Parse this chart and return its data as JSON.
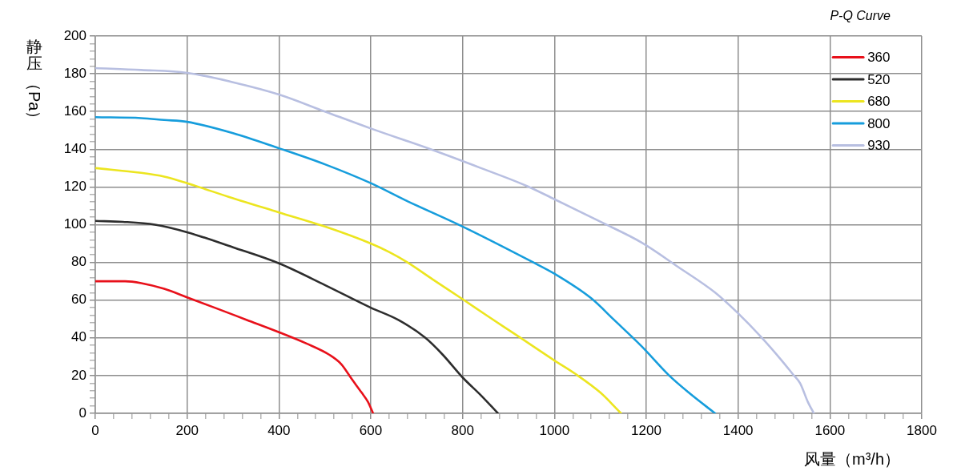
{
  "chart_data": {
    "type": "line",
    "title": "P-Q Curve",
    "xlabel": "风量（m³/h）",
    "ylabel": "静压（Pa）",
    "xlim": [
      0,
      1800
    ],
    "ylim": [
      0,
      200
    ],
    "xticks": [
      0,
      {
        "value": 40,
        "label": null
      },
      {
        "value": 80,
        "label": null
      },
      {
        "value": 120,
        "label": null
      },
      {
        "value": 160,
        "label": null
      },
      200,
      {
        "value": 240,
        "label": null
      },
      {
        "value": 280,
        "label": null
      },
      {
        "value": 320,
        "label": null
      },
      {
        "value": 360,
        "label": null
      },
      400,
      {
        "value": 440,
        "label": null
      },
      {
        "value": 480,
        "label": null
      },
      {
        "value": 520,
        "label": null
      },
      {
        "value": 560,
        "label": null
      },
      600,
      {
        "value": 640,
        "label": null
      },
      {
        "value": 680,
        "label": null
      },
      {
        "value": 720,
        "label": null
      },
      {
        "value": 760,
        "label": null
      },
      800,
      {
        "value": 840,
        "label": null
      },
      {
        "value": 880,
        "label": null
      },
      {
        "value": 920,
        "label": null
      },
      {
        "value": 960,
        "label": null
      },
      1000,
      {
        "value": 1040,
        "label": null
      },
      {
        "value": 1080,
        "label": null
      },
      {
        "value": 1120,
        "label": null
      },
      {
        "value": 1160,
        "label": null
      },
      1200,
      {
        "value": 1240,
        "label": null
      },
      {
        "value": 1280,
        "label": null
      },
      {
        "value": 1320,
        "label": null
      },
      {
        "value": 1360,
        "label": null
      },
      1400,
      {
        "value": 1440,
        "label": null
      },
      {
        "value": 1480,
        "label": null
      },
      {
        "value": 1520,
        "label": null
      },
      {
        "value": 1560,
        "label": null
      },
      1600,
      {
        "value": 1640,
        "label": null
      },
      {
        "value": 1680,
        "label": null
      },
      {
        "value": 1720,
        "label": null
      },
      {
        "value": 1760,
        "label": null
      },
      1800
    ],
    "yticks": [
      0,
      {
        "value": 4,
        "label": null
      },
      {
        "value": 8,
        "label": null
      },
      {
        "value": 12,
        "label": null
      },
      {
        "value": 16,
        "label": null
      },
      20,
      {
        "value": 24,
        "label": null
      },
      {
        "value": 28,
        "label": null
      },
      {
        "value": 32,
        "label": null
      },
      {
        "value": 36,
        "label": null
      },
      40,
      {
        "value": 44,
        "label": null
      },
      {
        "value": 48,
        "label": null
      },
      {
        "value": 52,
        "label": null
      },
      {
        "value": 56,
        "label": null
      },
      60,
      {
        "value": 64,
        "label": null
      },
      {
        "value": 68,
        "label": null
      },
      {
        "value": 72,
        "label": null
      },
      {
        "value": 76,
        "label": null
      },
      80,
      {
        "value": 84,
        "label": null
      },
      {
        "value": 88,
        "label": null
      },
      {
        "value": 92,
        "label": null
      },
      {
        "value": 96,
        "label": null
      },
      100,
      {
        "value": 104,
        "label": null
      },
      {
        "value": 108,
        "label": null
      },
      {
        "value": 112,
        "label": null
      },
      {
        "value": 116,
        "label": null
      },
      120,
      {
        "value": 124,
        "label": null
      },
      {
        "value": 128,
        "label": null
      },
      {
        "value": 132,
        "label": null
      },
      {
        "value": 136,
        "label": null
      },
      140,
      {
        "value": 144,
        "label": null
      },
      {
        "value": 148,
        "label": null
      },
      {
        "value": 152,
        "label": null
      },
      {
        "value": 156,
        "label": null
      },
      160,
      {
        "value": 164,
        "label": null
      },
      {
        "value": 168,
        "label": null
      },
      {
        "value": 172,
        "label": null
      },
      {
        "value": 176,
        "label": null
      },
      180,
      {
        "value": 184,
        "label": null
      },
      {
        "value": 188,
        "label": null
      },
      {
        "value": 192,
        "label": null
      },
      {
        "value": 196,
        "label": null
      },
      200
    ],
    "grid": true,
    "legend": "top right",
    "series": [
      {
        "name": "360",
        "color": "#e8101a",
        "x": [
          0,
          65,
          100,
          150,
          200,
          260,
          330,
          400,
          460,
          510,
          536,
          559,
          580,
          594,
          605
        ],
        "values": [
          70,
          70,
          69,
          66,
          61.5,
          56,
          49.5,
          43,
          37,
          31,
          26,
          18,
          11,
          6,
          0
        ]
      },
      {
        "name": "520",
        "color": "#2d2d2d",
        "x": [
          0,
          60,
          130,
          200,
          300,
          400,
          500,
          600,
          660,
          719,
          757,
          800,
          840,
          877
        ],
        "values": [
          102,
          101.5,
          100,
          96,
          88,
          79.5,
          68,
          56,
          49.5,
          40,
          31,
          19,
          9.5,
          0
        ]
      },
      {
        "name": "680",
        "color": "#ece51f",
        "x": [
          0,
          100,
          150,
          200,
          300,
          400,
          500,
          600,
          640,
          680,
          735,
          800,
          855,
          920,
          1000,
          1045,
          1100,
          1145
        ],
        "values": [
          130,
          127.5,
          125.5,
          122,
          114,
          106.5,
          99,
          90,
          85.5,
          80,
          71,
          60.5,
          51.5,
          41,
          28,
          21,
          11,
          0
        ]
      },
      {
        "name": "800",
        "color": "#169ddc",
        "x": [
          0,
          100,
          150,
          200,
          300,
          400,
          500,
          600,
          675,
          800,
          950,
          1000,
          1080,
          1130,
          1190,
          1250,
          1295,
          1350
        ],
        "values": [
          157,
          156.5,
          155.5,
          154.5,
          148.5,
          140.5,
          132,
          122,
          113,
          99,
          80.5,
          74,
          61,
          49.5,
          35.5,
          20,
          10.5,
          0
        ]
      },
      {
        "name": "930",
        "color": "#b8bfe1",
        "x": [
          0,
          100,
          200,
          300,
          400,
          500,
          600,
          730,
          840,
          940,
          1000,
          1105,
          1190,
          1270,
          1350,
          1400,
          1450,
          1495,
          1520,
          1535,
          1552,
          1565
        ],
        "values": [
          183,
          182,
          180.5,
          175.5,
          169,
          160,
          151,
          140,
          130,
          120.5,
          113.5,
          101,
          90.5,
          77.5,
          64,
          53,
          40.5,
          28,
          20.5,
          16,
          6,
          0
        ]
      }
    ]
  }
}
